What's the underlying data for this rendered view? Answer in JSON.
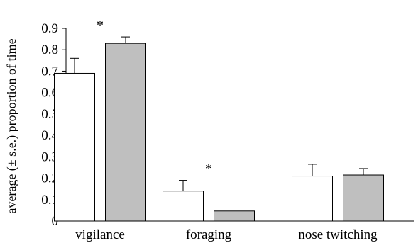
{
  "chart_data": {
    "type": "bar",
    "ylabel": "average (± s.e.) proportion of time",
    "xlabel": "",
    "ylim": [
      0,
      0.9
    ],
    "yticks": [
      "0",
      "0.1",
      "0.2",
      "0.3",
      "0.4",
      "0.5",
      "0.6",
      "0.7",
      "0.8",
      "0.9"
    ],
    "categories": [
      "vigilance",
      "foraging",
      "nose twitching"
    ],
    "series": [
      {
        "values": [
          0.69,
          0.14,
          0.21
        ],
        "errors": [
          0.07,
          0.05,
          0.055
        ],
        "color": "#ffffff"
      },
      {
        "values": [
          0.83,
          0.047,
          0.215
        ],
        "errors": [
          0.03,
          0.0,
          0.03
        ],
        "color": "#bfbfbf"
      }
    ],
    "annotations": [
      {
        "category": "vigilance",
        "text": "*"
      },
      {
        "category": "foraging",
        "text": "*"
      }
    ],
    "grid": false,
    "legend": "none"
  }
}
